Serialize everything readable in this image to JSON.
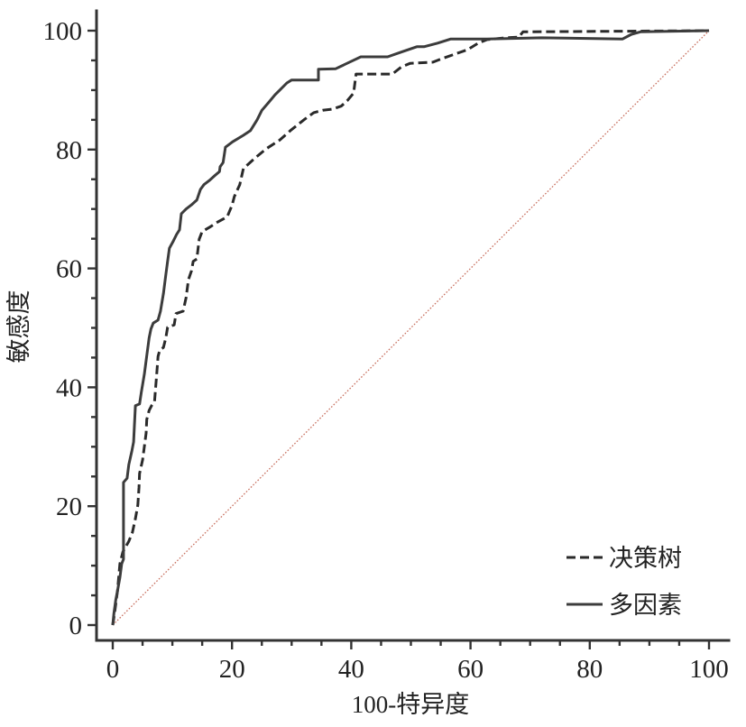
{
  "chart_data": {
    "type": "line",
    "xlabel": "100-特异度",
    "ylabel": "敏感度",
    "xlim": [
      0,
      100
    ],
    "ylim": [
      0,
      100
    ],
    "x_ticks": [
      0,
      20,
      40,
      60,
      80,
      100
    ],
    "y_ticks": [
      0,
      20,
      40,
      60,
      80,
      100
    ],
    "minor_tick_step": 5,
    "grid": false,
    "legend_position": "bottom-right",
    "series": [
      {
        "name": "决策树",
        "dashed": true,
        "color": "#2a2a2a",
        "x": [
          0,
          0.3,
          0.8,
          1.2,
          1.7,
          2.3,
          2.7,
          3.3,
          3.8,
          4.2,
          4.4,
          4.5,
          5.0,
          5.3,
          5.6,
          5.7,
          6.1,
          6.5,
          7.0,
          7.3,
          7.6,
          7.9,
          8.5,
          8.9,
          9.2,
          10.3,
          10.6,
          11.8,
          12.3,
          12.7,
          13.2,
          13.5,
          14.1,
          14.5,
          15.0,
          16.2,
          17.4,
          19.2,
          20.0,
          20.4,
          21.3,
          21.9,
          23.9,
          25.7,
          28.0,
          29.8,
          32.2,
          33.7,
          35.2,
          36.8,
          38.3,
          39.3,
          40.4,
          40.8,
          46.9,
          48.4,
          49.9,
          53.7,
          55.2,
          57.5,
          59.5,
          61.3,
          62.8,
          65.8,
          68.1,
          68.8,
          100
        ],
        "y": [
          0,
          2.0,
          5.8,
          10.3,
          12.3,
          13.4,
          14.1,
          15.6,
          17.9,
          20.2,
          23.2,
          25.5,
          27.8,
          30.0,
          32.3,
          34.6,
          36.1,
          36.9,
          37.6,
          41.4,
          45.2,
          46.3,
          46.7,
          48.3,
          50.1,
          50.5,
          52.4,
          52.8,
          55.1,
          58.1,
          59.6,
          61.2,
          61.6,
          64.9,
          66.2,
          66.9,
          67.7,
          68.7,
          70.6,
          72.1,
          74.1,
          76.8,
          78.6,
          80.1,
          81.6,
          83.2,
          85.1,
          86.2,
          86.6,
          86.8,
          87.3,
          88.2,
          89.5,
          92.7,
          92.7,
          93.9,
          94.5,
          94.7,
          95.3,
          96.1,
          96.8,
          97.9,
          98.5,
          98.8,
          98.9,
          99.8,
          100
        ]
      },
      {
        "name": "多因素",
        "dashed": false,
        "color": "#3c3c3c",
        "x": [
          0,
          0.2,
          0.5,
          0.8,
          1.2,
          1.5,
          1.8,
          1.8,
          2.4,
          2.7,
          3.2,
          3.5,
          3.8,
          4.5,
          4.8,
          5.3,
          5.6,
          6.1,
          6.4,
          6.8,
          7.6,
          8.0,
          8.5,
          8.9,
          9.2,
          9.5,
          10.1,
          10.7,
          11.2,
          11.5,
          12.3,
          13.2,
          14.1,
          14.7,
          15.3,
          16.2,
          17.1,
          17.9,
          18.0,
          18.5,
          18.9,
          20.1,
          21.9,
          23.1,
          24.2,
          25.0,
          26.2,
          27.2,
          28.0,
          29.2,
          30.0,
          34.5,
          34.5,
          37.4,
          39.3,
          41.6,
          46.1,
          48.4,
          51.0,
          52.2,
          54.5,
          56.7,
          62.8,
          71.9,
          85.5,
          87.0,
          88.5,
          100
        ],
        "y": [
          0,
          2.0,
          4.2,
          5.8,
          8.0,
          10.3,
          11.1,
          24.0,
          24.7,
          27.0,
          29.3,
          30.8,
          36.9,
          37.2,
          39.2,
          42.2,
          44.5,
          48.3,
          49.8,
          50.8,
          51.3,
          52.8,
          55.8,
          58.9,
          61.2,
          63.4,
          64.5,
          65.7,
          66.5,
          69.2,
          70.0,
          70.7,
          71.5,
          73.3,
          74.1,
          74.8,
          75.6,
          76.3,
          77.1,
          77.8,
          80.4,
          81.3,
          82.4,
          83.2,
          85.0,
          86.6,
          88.0,
          89.2,
          90.0,
          91.2,
          91.7,
          91.7,
          93.5,
          93.6,
          94.5,
          95.6,
          95.6,
          96.4,
          97.3,
          97.3,
          97.9,
          98.6,
          98.6,
          98.8,
          98.6,
          99.4,
          99.8,
          100
        ]
      }
    ],
    "reference_line": {
      "dotted": true,
      "color": "#c8705f",
      "x": [
        0,
        100
      ],
      "y": [
        0,
        100
      ]
    }
  }
}
